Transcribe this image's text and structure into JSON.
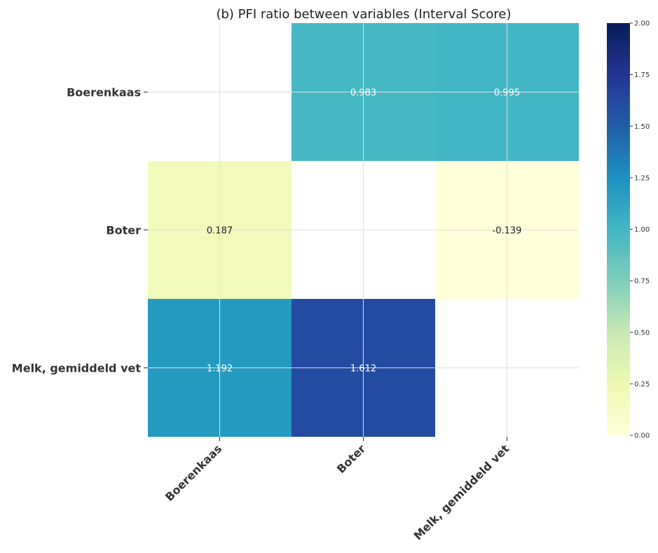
{
  "chart_data": {
    "type": "heatmap",
    "title": "(b) PFI ratio between variables (Interval Score)",
    "rows": [
      "Boerenkaas",
      "Boter",
      "Melk, gemiddeld vet"
    ],
    "columns": [
      "Boerenkaas",
      "Boter",
      "Melk, gemiddeld vet"
    ],
    "cells": [
      {
        "row": 0,
        "col": 0,
        "value": null,
        "label": ""
      },
      {
        "row": 0,
        "col": 1,
        "value": 0.983,
        "label": "0.983"
      },
      {
        "row": 0,
        "col": 2,
        "value": 0.995,
        "label": "0.995"
      },
      {
        "row": 1,
        "col": 0,
        "value": 0.187,
        "label": "0.187"
      },
      {
        "row": 1,
        "col": 1,
        "value": null,
        "label": ""
      },
      {
        "row": 1,
        "col": 2,
        "value": -0.139,
        "label": "-0.139"
      },
      {
        "row": 2,
        "col": 0,
        "value": 1.192,
        "label": "1.192"
      },
      {
        "row": 2,
        "col": 1,
        "value": 1.612,
        "label": "1.612"
      },
      {
        "row": 2,
        "col": 2,
        "value": null,
        "label": ""
      }
    ],
    "colorbar": {
      "colormap": "YlGnBu",
      "range": [
        0,
        2
      ],
      "ticks": [
        "0.00",
        "0.25",
        "0.50",
        "0.75",
        "1.00",
        "1.25",
        "1.50",
        "1.75",
        "2.00"
      ]
    },
    "grid": true,
    "xtick_rotation_deg": 45
  }
}
